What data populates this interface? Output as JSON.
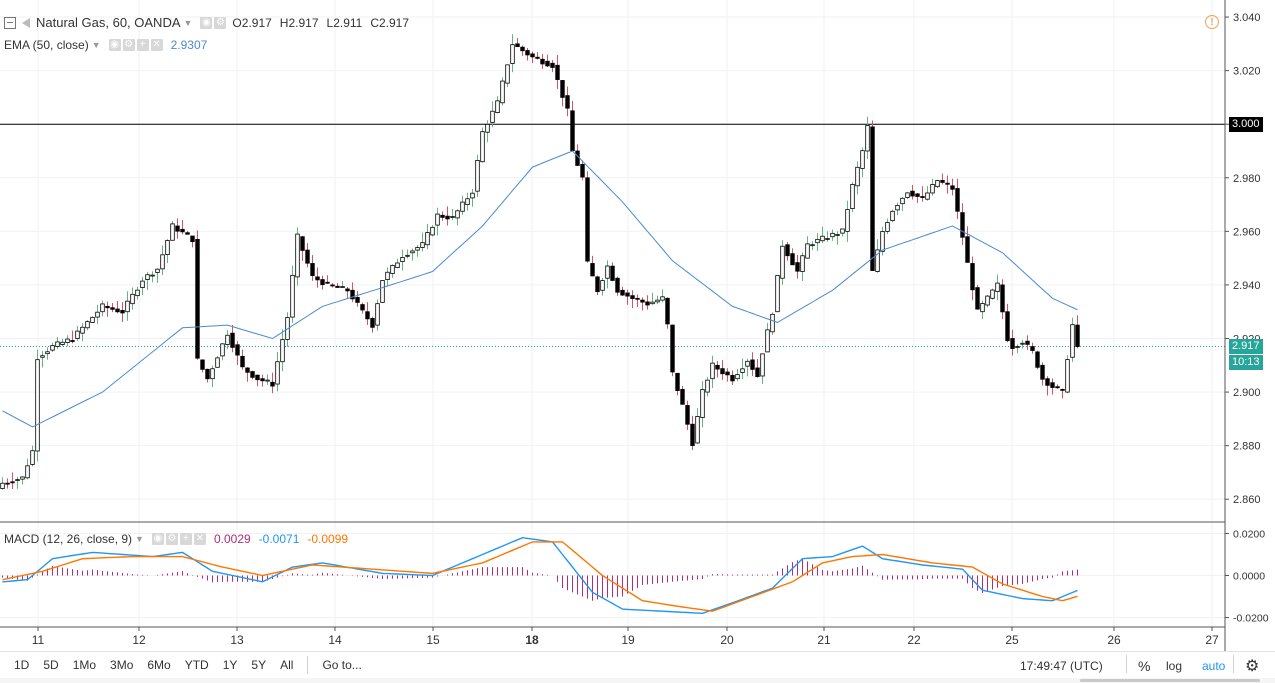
{
  "header": {
    "symbol": "Natural Gas, 60, OANDA",
    "ohlc": [
      {
        "label": "O",
        "value": "2.917"
      },
      {
        "label": "H",
        "value": "2.917"
      },
      {
        "label": "L",
        "value": "2.911"
      },
      {
        "label": "C",
        "value": "2.917"
      }
    ]
  },
  "ema": {
    "label": "EMA (50, close)",
    "value": "2.9307"
  },
  "macd": {
    "label": "MACD (12, 26, close, 9)",
    "hist": "0.0029",
    "macd": "-0.0071",
    "signal": "-0.0099"
  },
  "price_tags": {
    "level": "3.000",
    "last": "2.917",
    "countdown": "10:13"
  },
  "bottom_bar": {
    "ranges": [
      "1D",
      "5D",
      "1Mo",
      "3Mo",
      "6Mo",
      "YTD",
      "1Y",
      "5Y",
      "All"
    ],
    "goto": "Go to...",
    "time": "17:49:47 (UTC)",
    "percent": "%",
    "log": "log",
    "auto": "auto"
  },
  "colors": {
    "up_body": "#ffffff",
    "down_body": "#000000",
    "border": "#000000",
    "wick_up": "#5eb97a",
    "wick_down": "#d1546a",
    "ema": "#4a8bd1",
    "macd": "#2196f3",
    "signal": "#ff7600",
    "hist": "#b02d7a",
    "last_price": "#26a69a",
    "grid": "#f0f2f5"
  },
  "icons": [
    "chart-toggle-icon",
    "flag-icon",
    "settings-icon",
    "gear-icon",
    "plus-icon",
    "close-icon",
    "alert-icon"
  ],
  "chart_data": [
    {
      "type": "candlestick",
      "title": "Natural Gas, 60, OANDA",
      "x_ticks": [
        "11",
        "12",
        "13",
        "14",
        "15",
        "18",
        "19",
        "20",
        "21",
        "22",
        "25",
        "26",
        "27"
      ],
      "y_ticks": [
        "2.860",
        "2.880",
        "2.900",
        "2.920",
        "2.940",
        "2.960",
        "2.980",
        "3.000",
        "3.020",
        "3.040"
      ],
      "ylim": [
        2.8515,
        3.0445
      ],
      "horizontal_line": 3.0,
      "last_price": 2.917,
      "anchors": [
        {
          "bar": 0,
          "price": 2.866
        },
        {
          "bar": 4,
          "price": 2.868
        },
        {
          "bar": 6,
          "price": 2.878
        },
        {
          "bar": 7,
          "price": 2.913
        },
        {
          "bar": 10,
          "price": 2.917
        },
        {
          "bar": 14,
          "price": 2.92
        },
        {
          "bar": 20,
          "price": 2.932
        },
        {
          "bar": 24,
          "price": 2.93
        },
        {
          "bar": 28,
          "price": 2.942
        },
        {
          "bar": 31,
          "price": 2.946
        },
        {
          "bar": 34,
          "price": 2.962
        },
        {
          "bar": 38,
          "price": 2.957
        },
        {
          "bar": 39,
          "price": 2.912
        },
        {
          "bar": 41,
          "price": 2.905
        },
        {
          "bar": 45,
          "price": 2.922
        },
        {
          "bar": 48,
          "price": 2.909
        },
        {
          "bar": 51,
          "price": 2.905
        },
        {
          "bar": 54,
          "price": 2.903
        },
        {
          "bar": 57,
          "price": 2.928
        },
        {
          "bar": 59,
          "price": 2.958
        },
        {
          "bar": 62,
          "price": 2.943
        },
        {
          "bar": 65,
          "price": 2.94
        },
        {
          "bar": 69,
          "price": 2.938
        },
        {
          "bar": 72,
          "price": 2.93
        },
        {
          "bar": 74,
          "price": 2.925
        },
        {
          "bar": 76,
          "price": 2.942
        },
        {
          "bar": 80,
          "price": 2.951
        },
        {
          "bar": 84,
          "price": 2.955
        },
        {
          "bar": 87,
          "price": 2.966
        },
        {
          "bar": 90,
          "price": 2.965
        },
        {
          "bar": 94,
          "price": 2.975
        },
        {
          "bar": 96,
          "price": 2.997
        },
        {
          "bar": 99,
          "price": 3.008
        },
        {
          "bar": 102,
          "price": 3.03
        },
        {
          "bar": 106,
          "price": 3.025
        },
        {
          "bar": 110,
          "price": 3.022
        },
        {
          "bar": 113,
          "price": 3.005
        },
        {
          "bar": 114,
          "price": 2.99
        },
        {
          "bar": 116,
          "price": 2.98
        },
        {
          "bar": 117,
          "price": 2.948
        },
        {
          "bar": 119,
          "price": 2.938
        },
        {
          "bar": 121,
          "price": 2.947
        },
        {
          "bar": 123,
          "price": 2.938
        },
        {
          "bar": 126,
          "price": 2.935
        },
        {
          "bar": 129,
          "price": 2.933
        },
        {
          "bar": 132,
          "price": 2.935
        },
        {
          "bar": 133,
          "price": 2.925
        },
        {
          "bar": 134,
          "price": 2.907
        },
        {
          "bar": 136,
          "price": 2.895
        },
        {
          "bar": 138,
          "price": 2.881
        },
        {
          "bar": 140,
          "price": 2.9
        },
        {
          "bar": 142,
          "price": 2.91
        },
        {
          "bar": 146,
          "price": 2.905
        },
        {
          "bar": 149,
          "price": 2.912
        },
        {
          "bar": 151,
          "price": 2.906
        },
        {
          "bar": 152,
          "price": 2.915
        },
        {
          "bar": 154,
          "price": 2.93
        },
        {
          "bar": 156,
          "price": 2.955
        },
        {
          "bar": 159,
          "price": 2.945
        },
        {
          "bar": 161,
          "price": 2.955
        },
        {
          "bar": 165,
          "price": 2.958
        },
        {
          "bar": 168,
          "price": 2.96
        },
        {
          "bar": 170,
          "price": 2.977
        },
        {
          "bar": 172,
          "price": 2.99
        },
        {
          "bar": 173,
          "price": 2.999
        },
        {
          "bar": 174,
          "price": 2.945
        },
        {
          "bar": 176,
          "price": 2.96
        },
        {
          "bar": 178,
          "price": 2.968
        },
        {
          "bar": 181,
          "price": 2.975
        },
        {
          "bar": 184,
          "price": 2.972
        },
        {
          "bar": 187,
          "price": 2.979
        },
        {
          "bar": 190,
          "price": 2.976
        },
        {
          "bar": 192,
          "price": 2.958
        },
        {
          "bar": 193,
          "price": 2.948
        },
        {
          "bar": 195,
          "price": 2.93
        },
        {
          "bar": 197,
          "price": 2.935
        },
        {
          "bar": 199,
          "price": 2.94
        },
        {
          "bar": 201,
          "price": 2.92
        },
        {
          "bar": 202,
          "price": 2.917
        },
        {
          "bar": 204,
          "price": 2.919
        },
        {
          "bar": 206,
          "price": 2.915
        },
        {
          "bar": 208,
          "price": 2.905
        },
        {
          "bar": 210,
          "price": 2.902
        },
        {
          "bar": 212,
          "price": 2.9
        },
        {
          "bar": 213,
          "price": 2.913
        },
        {
          "bar": 214,
          "price": 2.925
        },
        {
          "bar": 215,
          "price": 2.917
        }
      ],
      "ema_anchors": [
        {
          "bar": 0,
          "price": 2.893
        },
        {
          "bar": 6,
          "price": 2.887
        },
        {
          "bar": 20,
          "price": 2.9
        },
        {
          "bar": 36,
          "price": 2.924
        },
        {
          "bar": 45,
          "price": 2.925
        },
        {
          "bar": 54,
          "price": 2.92
        },
        {
          "bar": 64,
          "price": 2.932
        },
        {
          "bar": 76,
          "price": 2.939
        },
        {
          "bar": 86,
          "price": 2.945
        },
        {
          "bar": 96,
          "price": 2.962
        },
        {
          "bar": 106,
          "price": 2.984
        },
        {
          "bar": 114,
          "price": 2.99
        },
        {
          "bar": 124,
          "price": 2.971
        },
        {
          "bar": 134,
          "price": 2.949
        },
        {
          "bar": 146,
          "price": 2.932
        },
        {
          "bar": 155,
          "price": 2.926
        },
        {
          "bar": 166,
          "price": 2.938
        },
        {
          "bar": 176,
          "price": 2.953
        },
        {
          "bar": 190,
          "price": 2.962
        },
        {
          "bar": 200,
          "price": 2.952
        },
        {
          "bar": 210,
          "price": 2.935
        },
        {
          "bar": 215,
          "price": 2.9307
        }
      ]
    },
    {
      "type": "line",
      "title": "MACD (12, 26, close, 9)",
      "y_ticks": [
        "-0.0200",
        "0.0000",
        "0.0200"
      ],
      "ylim": [
        -0.0245,
        0.0245
      ],
      "series": [
        {
          "name": "MACD",
          "anchors": [
            {
              "bar": 0,
              "value": -0.003
            },
            {
              "bar": 5,
              "value": -0.002
            },
            {
              "bar": 10,
              "value": 0.008
            },
            {
              "bar": 18,
              "value": 0.011
            },
            {
              "bar": 30,
              "value": 0.009
            },
            {
              "bar": 36,
              "value": 0.011
            },
            {
              "bar": 42,
              "value": 0.002
            },
            {
              "bar": 52,
              "value": -0.003
            },
            {
              "bar": 58,
              "value": 0.004
            },
            {
              "bar": 64,
              "value": 0.006
            },
            {
              "bar": 76,
              "value": 0.001
            },
            {
              "bar": 86,
              "value": 0.0
            },
            {
              "bar": 96,
              "value": 0.01
            },
            {
              "bar": 104,
              "value": 0.018
            },
            {
              "bar": 110,
              "value": 0.016
            },
            {
              "bar": 118,
              "value": -0.008
            },
            {
              "bar": 124,
              "value": -0.016
            },
            {
              "bar": 132,
              "value": -0.017
            },
            {
              "bar": 140,
              "value": -0.018
            },
            {
              "bar": 146,
              "value": -0.013
            },
            {
              "bar": 154,
              "value": -0.006
            },
            {
              "bar": 160,
              "value": 0.008
            },
            {
              "bar": 166,
              "value": 0.009
            },
            {
              "bar": 172,
              "value": 0.014
            },
            {
              "bar": 176,
              "value": 0.008
            },
            {
              "bar": 184,
              "value": 0.005
            },
            {
              "bar": 192,
              "value": 0.003
            },
            {
              "bar": 196,
              "value": -0.007
            },
            {
              "bar": 204,
              "value": -0.011
            },
            {
              "bar": 210,
              "value": -0.012
            },
            {
              "bar": 215,
              "value": -0.0071
            }
          ]
        },
        {
          "name": "Signal",
          "anchors": [
            {
              "bar": 0,
              "value": -0.002
            },
            {
              "bar": 8,
              "value": 0.002
            },
            {
              "bar": 16,
              "value": 0.008
            },
            {
              "bar": 26,
              "value": 0.009
            },
            {
              "bar": 36,
              "value": 0.009
            },
            {
              "bar": 44,
              "value": 0.004
            },
            {
              "bar": 52,
              "value": 0.0
            },
            {
              "bar": 62,
              "value": 0.005
            },
            {
              "bar": 74,
              "value": 0.003
            },
            {
              "bar": 86,
              "value": 0.001
            },
            {
              "bar": 96,
              "value": 0.006
            },
            {
              "bar": 106,
              "value": 0.016
            },
            {
              "bar": 112,
              "value": 0.016
            },
            {
              "bar": 120,
              "value": 0.0
            },
            {
              "bar": 128,
              "value": -0.012
            },
            {
              "bar": 136,
              "value": -0.015
            },
            {
              "bar": 142,
              "value": -0.017
            },
            {
              "bar": 150,
              "value": -0.01
            },
            {
              "bar": 158,
              "value": -0.003
            },
            {
              "bar": 164,
              "value": 0.006
            },
            {
              "bar": 170,
              "value": 0.009
            },
            {
              "bar": 176,
              "value": 0.01
            },
            {
              "bar": 186,
              "value": 0.006
            },
            {
              "bar": 194,
              "value": 0.004
            },
            {
              "bar": 200,
              "value": -0.004
            },
            {
              "bar": 208,
              "value": -0.01
            },
            {
              "bar": 212,
              "value": -0.012
            },
            {
              "bar": 215,
              "value": -0.0099
            }
          ]
        }
      ]
    }
  ]
}
